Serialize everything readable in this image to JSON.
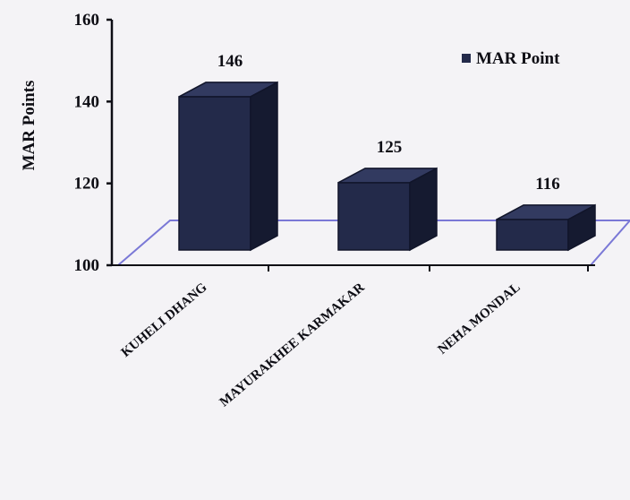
{
  "chart_data": {
    "type": "bar",
    "style": "3d-column",
    "ylabel": "MAR Points",
    "ylim": [
      100,
      160
    ],
    "yticks": [
      100,
      120,
      140,
      160
    ],
    "categories": [
      "KUHELI DHANG",
      "MAYURAKHEE KARMAKAR",
      "NEHA MONDAL"
    ],
    "series": [
      {
        "name": "MAR Point",
        "values": [
          146,
          125,
          116
        ]
      }
    ],
    "data_labels": [
      "146",
      "125",
      "116"
    ],
    "legend_position": "top-right",
    "grid": false,
    "colors": {
      "bar_front": "#232a4a",
      "bar_top": "#323a60",
      "bar_side": "#151a30",
      "floor": "#7a78d6",
      "axis": "#0d0d14"
    }
  }
}
